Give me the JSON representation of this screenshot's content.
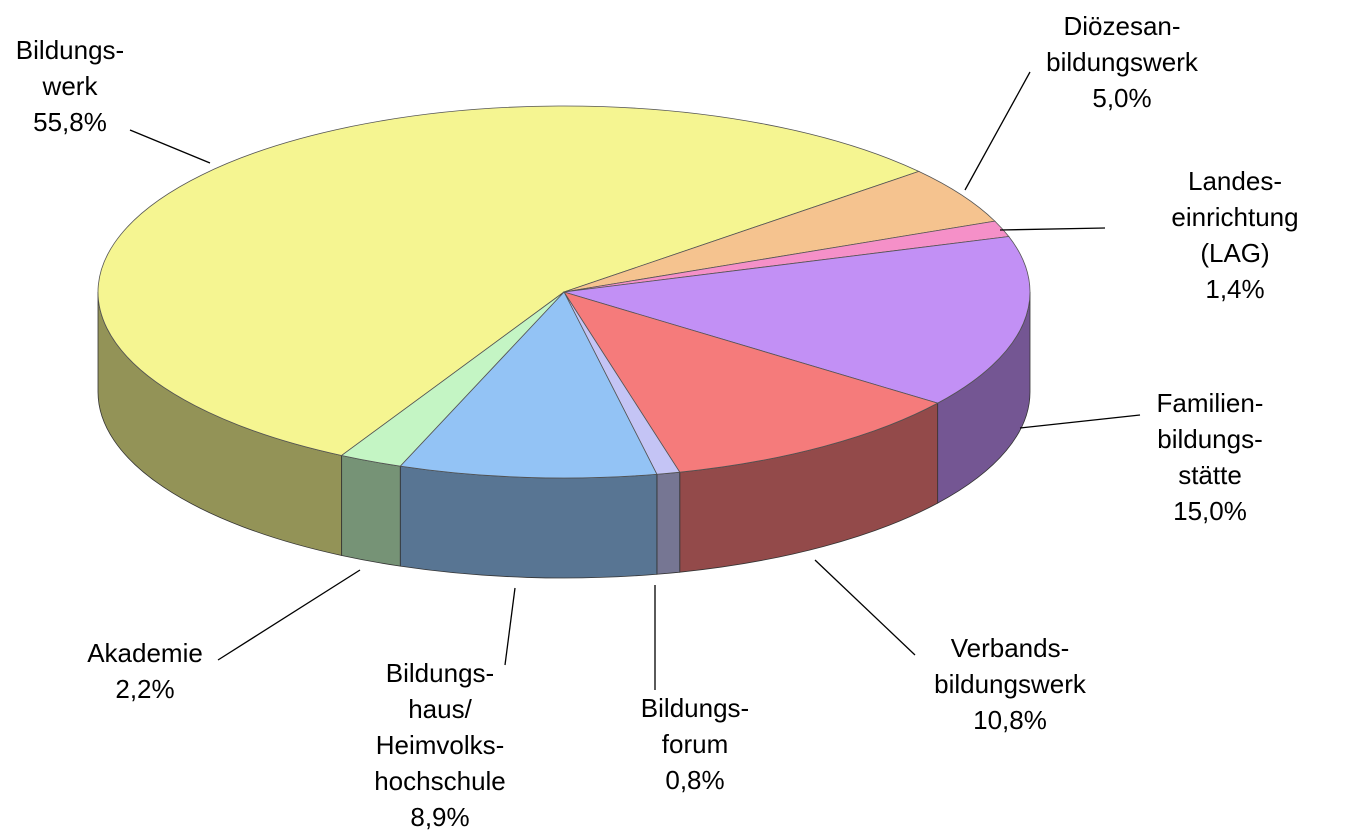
{
  "chart_data": {
    "type": "pie",
    "categories": [
      "Bildungs-\nwerk",
      "Diözesan-\nbildungswerk",
      "Landes-\neinrichtung (LAG)",
      "Familien-\nbildungs-\nstätte",
      "Verbands-\nbildungswerk",
      "Bildungs-\nforum",
      "Bildungs-\nhaus/\nHeimvolks-\nhochschule",
      "Akademie"
    ],
    "values": [
      55.8,
      5.0,
      1.4,
      15.0,
      10.8,
      0.8,
      8.9,
      2.2
    ],
    "value_labels": [
      "55,8%",
      "5,0%",
      "1,4%",
      "15,0%",
      "10,8%",
      "0,8%",
      "8,9%",
      "2,2%"
    ],
    "colors": [
      "#f5f591",
      "#f5c38f",
      "#f590c8",
      "#c290f5",
      "#f57b7b",
      "#c4c4f5",
      "#93c3f5",
      "#c4f5c4"
    ]
  }
}
